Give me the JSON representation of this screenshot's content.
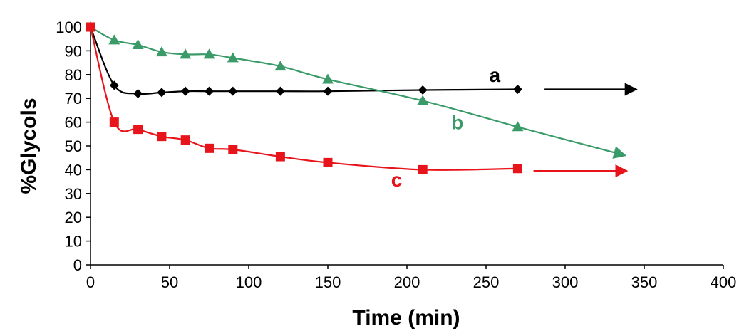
{
  "chart_data": {
    "type": "line",
    "title": "",
    "xlabel": "Time (min)",
    "ylabel": "%Glycols",
    "xlim": [
      0,
      400
    ],
    "ylim": [
      0,
      100
    ],
    "x_ticks": [
      0,
      50,
      100,
      150,
      200,
      250,
      300,
      350,
      400
    ],
    "y_ticks": [
      0,
      10,
      20,
      30,
      40,
      50,
      60,
      70,
      80,
      90,
      100
    ],
    "grid": false,
    "legend": "none",
    "series": [
      {
        "name": "a",
        "color": "#000000",
        "marker": "diamond",
        "x": [
          0,
          15,
          30,
          45,
          60,
          75,
          90,
          120,
          150,
          210,
          270
        ],
        "y": [
          100,
          75.5,
          72,
          72.5,
          73,
          73,
          73,
          73,
          73,
          73.5,
          73.8
        ],
        "arrow": {
          "x": [
            287,
            345
          ],
          "y": [
            73.8,
            73.8
          ]
        }
      },
      {
        "name": "b",
        "color": "#3a9a68",
        "marker": "triangle",
        "x": [
          0,
          15,
          30,
          45,
          60,
          75,
          90,
          120,
          150,
          210,
          270
        ],
        "y": [
          100,
          94.5,
          92.5,
          89.5,
          88.5,
          88.5,
          87,
          83.5,
          78,
          69,
          58
        ],
        "arrow": {
          "x": [
            270,
            338
          ],
          "y": [
            58,
            46
          ]
        }
      },
      {
        "name": "c",
        "color": "#e8141b",
        "marker": "square",
        "x": [
          0,
          15,
          30,
          45,
          60,
          75,
          90,
          120,
          150,
          210,
          270
        ],
        "y": [
          100,
          60,
          57,
          54,
          52.5,
          49,
          48.5,
          45.5,
          43,
          40,
          40.5
        ],
        "arrow": {
          "x": [
            280,
            339
          ],
          "y": [
            39.5,
            39.5
          ]
        }
      }
    ],
    "annotations": [
      {
        "text": "a",
        "series": "a",
        "x": 252,
        "y": 77
      },
      {
        "text": "b",
        "series": "b",
        "x": 228,
        "y": 57
      },
      {
        "text": "c",
        "series": "c",
        "x": 190,
        "y": 33
      }
    ]
  }
}
